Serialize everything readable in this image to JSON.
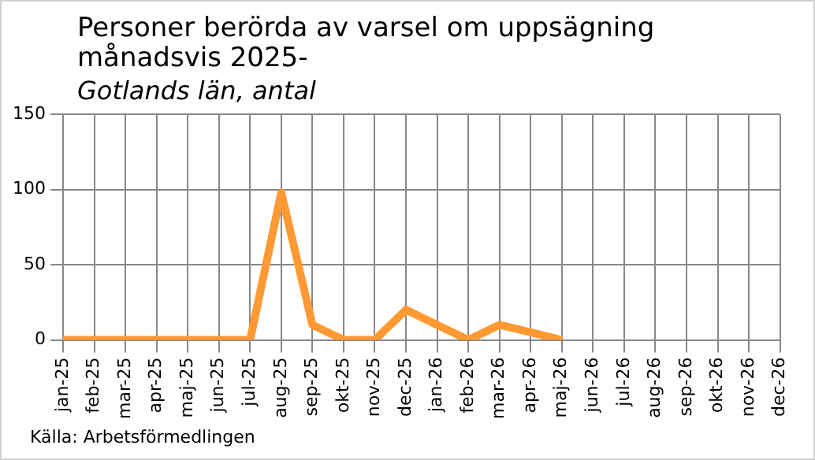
{
  "chart_data": {
    "type": "line",
    "title": "Personer berörda av varsel om uppsägning månadsvis 2025-",
    "subtitle": "Gotlands län, antal",
    "categories": [
      "jan-25",
      "feb-25",
      "mar-25",
      "apr-25",
      "maj-25",
      "jun-25",
      "jul-25",
      "aug-25",
      "sep-25",
      "okt-25",
      "nov-25",
      "dec-25",
      "jan-26",
      "feb-26",
      "mar-26",
      "apr-26",
      "maj-26",
      "jun-26",
      "jul-26",
      "aug-26",
      "sep-26",
      "okt-26",
      "nov-26",
      "dec-26"
    ],
    "series": [
      {
        "color": "#ff9933",
        "values": [
          0,
          0,
          0,
          0,
          0,
          0,
          0,
          98,
          10,
          0,
          0,
          20,
          10,
          0,
          10,
          5,
          0,
          null,
          null,
          null,
          null,
          null,
          null,
          null
        ]
      }
    ],
    "ylim": [
      0,
      150
    ],
    "yticks": [
      0,
      50,
      100,
      150
    ],
    "grid": true,
    "legend": false,
    "marker": "none",
    "line_style": "solid",
    "annotations": [
      "Källa: Arbetsförmedlingen"
    ]
  }
}
